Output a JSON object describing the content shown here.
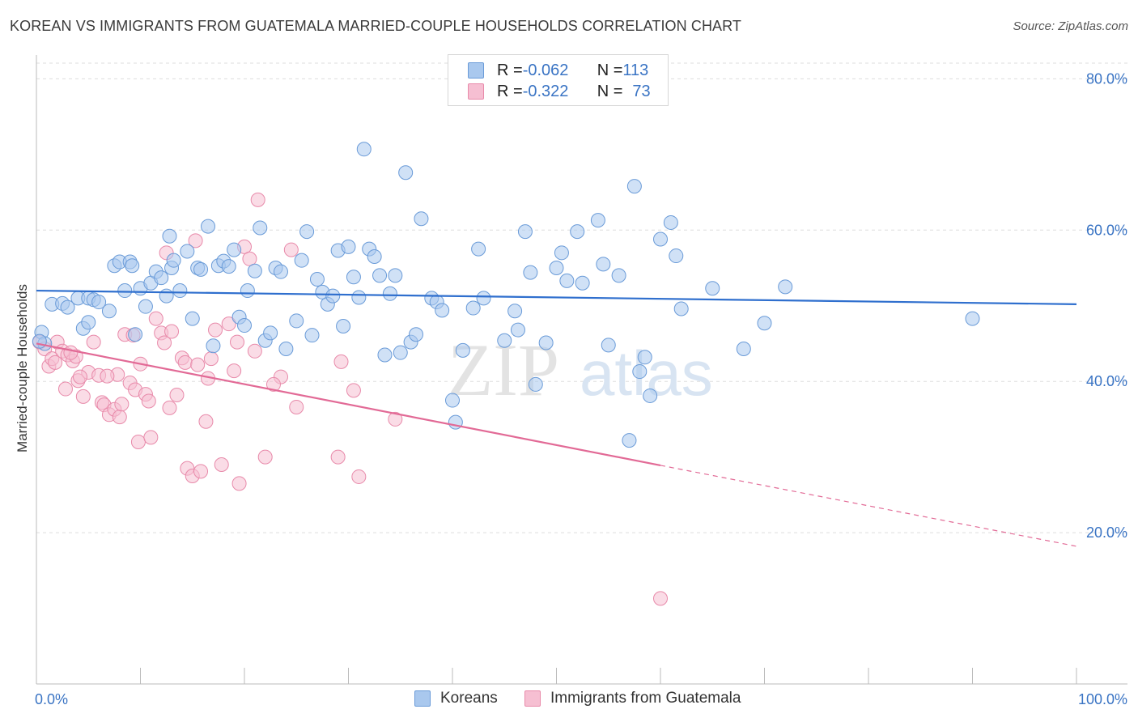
{
  "title": "KOREAN VS IMMIGRANTS FROM GUATEMALA MARRIED-COUPLE HOUSEHOLDS CORRELATION CHART",
  "source": "Source: ZipAtlas.com",
  "watermark": {
    "zip": "ZIP",
    "atlas": "atlas"
  },
  "legend_top": {
    "rows": [
      {
        "r_label": "R = ",
        "r_value": "-0.062",
        "n_label": "N = ",
        "n_value": "113"
      },
      {
        "r_label": "R = ",
        "r_value": "-0.322",
        "n_label": "N = ",
        "n_value": "73"
      }
    ]
  },
  "legend_bottom": [
    "Koreans",
    "Immigrants from Guatemala"
  ],
  "colors": {
    "blue_fill": "#a9c8ee",
    "blue_stroke": "#6a9bd8",
    "blue_line": "#2f6fce",
    "pink_fill": "#f6bfd2",
    "pink_stroke": "#e88aaa",
    "pink_line": "#e26a96",
    "tick_text": "#3a74c4",
    "grid": "#dddddd"
  },
  "chart_data": {
    "type": "scatter",
    "title": "KOREAN VS IMMIGRANTS FROM GUATEMALA MARRIED-COUPLE HOUSEHOLDS CORRELATION CHART",
    "xlabel": "",
    "ylabel": "Married-couple Households",
    "xlim": [
      0,
      100
    ],
    "ylim": [
      0,
      84
    ],
    "x_tick_labels": [
      "0.0%",
      "100.0%"
    ],
    "y_ticks": [
      20,
      40,
      60,
      80
    ],
    "y_tick_labels": [
      "20.0%",
      "40.0%",
      "60.0%",
      "80.0%"
    ],
    "grid": true,
    "legend_placement": "top-center",
    "series": [
      {
        "name": "Koreans",
        "r": -0.062,
        "n": 113,
        "trend": {
          "x0": 0,
          "y0": 52.0,
          "x1": 100,
          "y1": 50.2
        },
        "points": [
          [
            0.5,
            46.5
          ],
          [
            0.8,
            45.0
          ],
          [
            1.5,
            50.2
          ],
          [
            2.5,
            50.3
          ],
          [
            3.0,
            49.8
          ],
          [
            4.0,
            51.0
          ],
          [
            5.0,
            51.0
          ],
          [
            5.5,
            50.8
          ],
          [
            6.0,
            50.5
          ],
          [
            7.0,
            49.3
          ],
          [
            4.5,
            47.0
          ],
          [
            5.0,
            47.8
          ],
          [
            7.5,
            55.3
          ],
          [
            8.0,
            55.8
          ],
          [
            8.5,
            52.0
          ],
          [
            9.0,
            55.8
          ],
          [
            9.5,
            46.2
          ],
          [
            10.0,
            52.3
          ],
          [
            10.5,
            49.9
          ],
          [
            11.0,
            53.0
          ],
          [
            11.5,
            54.5
          ],
          [
            12.0,
            53.7
          ],
          [
            12.5,
            51.3
          ],
          [
            12.8,
            59.2
          ],
          [
            13.0,
            55.0
          ],
          [
            13.2,
            56.0
          ],
          [
            13.8,
            52.0
          ],
          [
            14.5,
            57.2
          ],
          [
            15.0,
            48.3
          ],
          [
            15.5,
            55.0
          ],
          [
            15.8,
            54.8
          ],
          [
            16.5,
            60.5
          ],
          [
            17.0,
            44.7
          ],
          [
            17.5,
            55.3
          ],
          [
            18.0,
            55.9
          ],
          [
            18.5,
            55.2
          ],
          [
            19.0,
            57.4
          ],
          [
            19.5,
            48.5
          ],
          [
            20.0,
            47.4
          ],
          [
            20.3,
            52.0
          ],
          [
            21.0,
            54.6
          ],
          [
            21.5,
            60.3
          ],
          [
            22.0,
            45.4
          ],
          [
            22.5,
            46.4
          ],
          [
            23.0,
            55.0
          ],
          [
            23.5,
            54.5
          ],
          [
            24.0,
            44.3
          ],
          [
            25.0,
            48.0
          ],
          [
            25.5,
            56.0
          ],
          [
            26.0,
            59.8
          ],
          [
            26.5,
            46.1
          ],
          [
            27.0,
            53.5
          ],
          [
            27.5,
            51.8
          ],
          [
            28.0,
            50.2
          ],
          [
            28.5,
            51.3
          ],
          [
            29.0,
            57.3
          ],
          [
            29.5,
            47.3
          ],
          [
            30.0,
            57.8
          ],
          [
            30.5,
            53.8
          ],
          [
            31.0,
            51.1
          ],
          [
            31.5,
            70.7
          ],
          [
            32.0,
            57.5
          ],
          [
            32.5,
            56.5
          ],
          [
            33.0,
            54.0
          ],
          [
            33.5,
            43.5
          ],
          [
            34.0,
            51.6
          ],
          [
            34.5,
            54.0
          ],
          [
            35.0,
            43.8
          ],
          [
            35.5,
            67.6
          ],
          [
            36.0,
            45.2
          ],
          [
            36.5,
            46.2
          ],
          [
            37.0,
            61.5
          ],
          [
            38.0,
            51.0
          ],
          [
            38.5,
            50.5
          ],
          [
            39.0,
            49.4
          ],
          [
            40.0,
            37.5
          ],
          [
            40.3,
            34.6
          ],
          [
            41.0,
            44.1
          ],
          [
            42.0,
            49.7
          ],
          [
            42.5,
            57.5
          ],
          [
            43.0,
            51.0
          ],
          [
            45.0,
            45.4
          ],
          [
            46.0,
            49.3
          ],
          [
            46.3,
            46.8
          ],
          [
            47.0,
            59.8
          ],
          [
            47.5,
            54.4
          ],
          [
            48.0,
            39.6
          ],
          [
            49.0,
            45.1
          ],
          [
            50.0,
            55.0
          ],
          [
            50.5,
            57.0
          ],
          [
            51.0,
            53.3
          ],
          [
            52.0,
            59.8
          ],
          [
            52.5,
            53.0
          ],
          [
            54.0,
            61.3
          ],
          [
            54.5,
            55.5
          ],
          [
            55.0,
            44.8
          ],
          [
            56.0,
            54.0
          ],
          [
            57.0,
            32.2
          ],
          [
            57.5,
            65.8
          ],
          [
            58.0,
            41.3
          ],
          [
            58.5,
            43.2
          ],
          [
            59.0,
            38.1
          ],
          [
            60.0,
            58.8
          ],
          [
            61.0,
            61.0
          ],
          [
            61.5,
            56.6
          ],
          [
            62.0,
            49.6
          ],
          [
            65.0,
            52.3
          ],
          [
            68.0,
            44.3
          ],
          [
            70.0,
            47.7
          ],
          [
            72.0,
            52.5
          ],
          [
            90.0,
            48.3
          ],
          [
            0.3,
            45.3
          ],
          [
            9.2,
            55.3
          ]
        ]
      },
      {
        "name": "Immigrants from Guatemala",
        "r": -0.322,
        "n": 73,
        "trend": {
          "x0": 0,
          "y0": 45.0,
          "x1": 60,
          "y1": 28.9,
          "dash_x1": 100,
          "dash_y1": 18.2
        },
        "points": [
          [
            0.3,
            45.2
          ],
          [
            0.8,
            44.3
          ],
          [
            1.2,
            42.0
          ],
          [
            1.5,
            43.0
          ],
          [
            2.0,
            45.2
          ],
          [
            2.5,
            44.0
          ],
          [
            2.8,
            39.0
          ],
          [
            3.0,
            43.5
          ],
          [
            3.5,
            42.7
          ],
          [
            3.8,
            43.3
          ],
          [
            4.0,
            40.1
          ],
          [
            4.5,
            38.0
          ],
          [
            5.0,
            41.2
          ],
          [
            5.5,
            45.2
          ],
          [
            6.0,
            40.8
          ],
          [
            6.3,
            37.2
          ],
          [
            6.5,
            36.9
          ],
          [
            7.0,
            35.6
          ],
          [
            7.5,
            36.3
          ],
          [
            7.8,
            40.9
          ],
          [
            8.0,
            35.3
          ],
          [
            8.5,
            46.2
          ],
          [
            9.0,
            39.8
          ],
          [
            9.3,
            46.1
          ],
          [
            9.5,
            38.9
          ],
          [
            9.8,
            32.0
          ],
          [
            10.0,
            42.3
          ],
          [
            10.5,
            38.3
          ],
          [
            10.8,
            37.4
          ],
          [
            11.0,
            32.6
          ],
          [
            11.5,
            48.3
          ],
          [
            12.0,
            46.4
          ],
          [
            12.3,
            45.1
          ],
          [
            12.5,
            57.0
          ],
          [
            13.0,
            46.6
          ],
          [
            13.5,
            38.2
          ],
          [
            14.0,
            43.1
          ],
          [
            14.3,
            42.5
          ],
          [
            14.5,
            28.5
          ],
          [
            15.0,
            27.5
          ],
          [
            15.3,
            58.6
          ],
          [
            15.5,
            42.2
          ],
          [
            15.8,
            28.1
          ],
          [
            16.3,
            34.7
          ],
          [
            16.8,
            43.0
          ],
          [
            17.2,
            46.8
          ],
          [
            17.8,
            29.0
          ],
          [
            18.5,
            47.6
          ],
          [
            19.0,
            41.4
          ],
          [
            19.3,
            45.2
          ],
          [
            19.5,
            26.5
          ],
          [
            20.0,
            57.8
          ],
          [
            20.5,
            56.2
          ],
          [
            21.0,
            44.0
          ],
          [
            21.3,
            64.0
          ],
          [
            22.0,
            30.0
          ],
          [
            23.5,
            40.6
          ],
          [
            24.5,
            57.4
          ],
          [
            25.0,
            36.6
          ],
          [
            29.0,
            30.0
          ],
          [
            29.3,
            42.6
          ],
          [
            30.5,
            38.8
          ],
          [
            31.0,
            27.4
          ],
          [
            34.5,
            35.0
          ],
          [
            60.0,
            11.3
          ],
          [
            1.8,
            42.5
          ],
          [
            3.3,
            43.8
          ],
          [
            8.2,
            37.0
          ],
          [
            6.8,
            40.7
          ],
          [
            12.8,
            36.5
          ],
          [
            4.2,
            40.6
          ],
          [
            16.5,
            40.4
          ],
          [
            22.8,
            39.6
          ]
        ]
      }
    ]
  }
}
